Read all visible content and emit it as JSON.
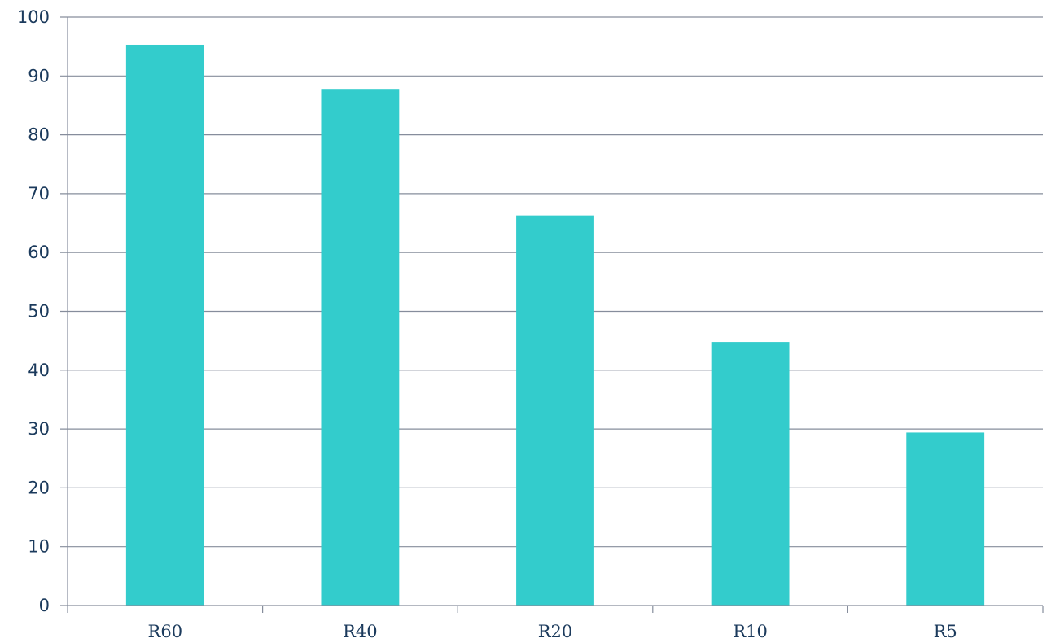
{
  "chart_data": {
    "type": "bar",
    "categories": [
      "R60",
      "R40",
      "R20",
      "R10",
      "R5"
    ],
    "values": [
      95.3,
      87.8,
      66.3,
      44.8,
      29.4
    ],
    "y_ticks": [
      "0",
      "10",
      "20",
      "30",
      "40",
      "50",
      "60",
      "70",
      "80",
      "90",
      "100"
    ],
    "ylim": [
      0,
      100
    ],
    "grid": true,
    "legend": "none",
    "bar_color": "#33cccc",
    "grid_color": "#868d9c",
    "label_color": "#1b3a5c"
  }
}
